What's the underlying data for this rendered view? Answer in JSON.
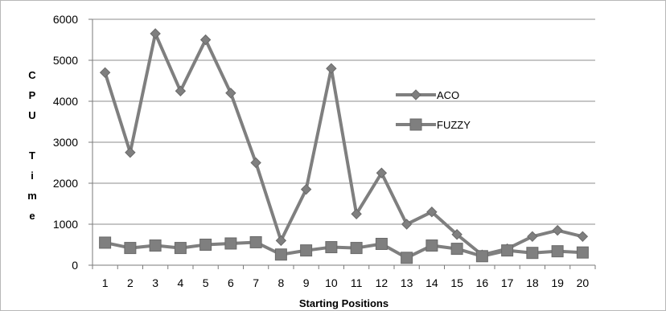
{
  "chart_data": {
    "type": "line",
    "title": "",
    "xlabel": "Starting Positions",
    "ylabel": "CPU Time",
    "ylabel_chars": [
      "C",
      "P",
      "U",
      "",
      "T",
      "i",
      "m",
      "e"
    ],
    "categories": [
      "1",
      "2",
      "3",
      "4",
      "5",
      "6",
      "7",
      "8",
      "9",
      "10",
      "11",
      "12",
      "13",
      "14",
      "15",
      "16",
      "17",
      "18",
      "19",
      "20"
    ],
    "ylim": [
      0,
      6000
    ],
    "yticks": [
      0,
      1000,
      2000,
      3000,
      4000,
      5000,
      6000
    ],
    "grid": true,
    "legend_position": "right",
    "series": [
      {
        "name": "ACO",
        "marker": "diamond",
        "color": "#7f7f7f",
        "values": [
          4700,
          2750,
          5650,
          4250,
          5500,
          4200,
          2500,
          600,
          1850,
          4800,
          1250,
          2250,
          1000,
          1300,
          750,
          250,
          400,
          700,
          850,
          700
        ]
      },
      {
        "name": "FUZZY",
        "marker": "square",
        "color": "#7f7f7f",
        "values": [
          550,
          420,
          480,
          420,
          500,
          530,
          560,
          260,
          360,
          440,
          420,
          520,
          180,
          480,
          400,
          220,
          360,
          300,
          340,
          310
        ]
      }
    ]
  }
}
